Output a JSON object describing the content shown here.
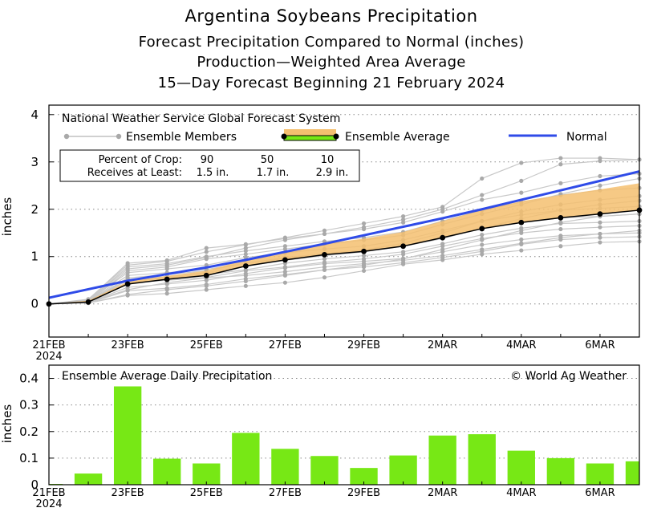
{
  "titles": {
    "main": "Argentina Soybeans Precipitation",
    "sub1": "Forecast Precipitation Compared to Normal (inches)",
    "sub2": "Production—Weighted Area Average",
    "sub3": "15—Day Forecast Beginning 21 February 2024"
  },
  "colors": {
    "member": "#c8c8c8",
    "member_marker": "#a9a9a9",
    "average_band": "#f5c070",
    "average_line": "#000000",
    "normal": "#2f4be8",
    "daily_bar": "#77e815"
  },
  "top_panel": {
    "source_label": "National Weather Service Global Forecast System",
    "legend": {
      "members": "Ensemble Members",
      "average": "Ensemble Average",
      "normal": "Normal"
    },
    "crop_box": {
      "row1_label": "Percent of Crop:",
      "row1_values": [
        "90",
        "50",
        "10"
      ],
      "row2_label": "Receives at Least:",
      "row2_values": [
        "1.5 in.",
        "1.7 in.",
        "2.9 in."
      ]
    }
  },
  "bottom_panel": {
    "title": "Ensemble Average Daily Precipitation",
    "credit": "© World Ag Weather"
  },
  "chart_data": [
    {
      "type": "line",
      "ylabel": "inches",
      "ylim": [
        -0.7,
        4.2
      ],
      "yticks": [
        0,
        1,
        2,
        3,
        4
      ],
      "x_day_range": [
        0,
        15
      ],
      "xtick_days": [
        0,
        2,
        4,
        6,
        8,
        10,
        12,
        14
      ],
      "xtick_labels": [
        "21FEB",
        "23FEB",
        "25FEB",
        "27FEB",
        "29FEB",
        "2MAR",
        "4MAR",
        "6MAR"
      ],
      "year_label": "2024",
      "grid": "dotted horizontal",
      "days": [
        0,
        1,
        2,
        3,
        4,
        5,
        6,
        7,
        8,
        9,
        10,
        11,
        12,
        13,
        14,
        15
      ],
      "series": [
        {
          "name": "Ensemble Average",
          "values": [
            0,
            0.04,
            0.42,
            0.52,
            0.6,
            0.8,
            0.93,
            1.04,
            1.11,
            1.22,
            1.4,
            1.59,
            1.72,
            1.82,
            1.9,
            1.98
          ]
        },
        {
          "name": "Normal",
          "values": [
            0.13,
            0.31,
            0.49,
            0.63,
            0.77,
            0.93,
            1.1,
            1.27,
            1.45,
            1.63,
            1.81,
            2.0,
            2.2,
            2.4,
            2.6,
            2.8
          ]
        },
        {
          "name": "Ensemble Spread Upper",
          "values": [
            0,
            0.07,
            0.47,
            0.59,
            0.7,
            0.94,
            1.1,
            1.27,
            1.38,
            1.52,
            1.75,
            1.98,
            2.17,
            2.3,
            2.42,
            2.55
          ]
        }
      ],
      "members": [
        [
          0,
          0.02,
          0.18,
          0.22,
          0.3,
          0.38,
          0.45,
          0.56,
          0.7,
          0.84,
          0.93,
          1.05,
          1.13,
          1.22,
          1.3,
          1.32
        ],
        [
          0,
          0.02,
          0.28,
          0.33,
          0.41,
          0.53,
          0.62,
          0.72,
          0.78,
          0.87,
          0.98,
          1.11,
          1.26,
          1.36,
          1.4,
          1.42
        ],
        [
          0,
          0.03,
          0.35,
          0.42,
          0.5,
          0.64,
          0.76,
          0.85,
          0.9,
          0.96,
          1.1,
          1.25,
          1.36,
          1.44,
          1.48,
          1.5
        ],
        [
          0,
          0.05,
          0.45,
          0.5,
          0.56,
          0.7,
          0.78,
          0.88,
          0.95,
          1.05,
          1.22,
          1.38,
          1.5,
          1.58,
          1.62,
          1.65
        ],
        [
          0,
          0.04,
          0.5,
          0.55,
          0.62,
          0.72,
          0.86,
          0.95,
          1.02,
          1.1,
          1.27,
          1.46,
          1.6,
          1.7,
          1.72,
          1.75
        ],
        [
          0,
          0.06,
          0.6,
          0.66,
          0.73,
          0.86,
          0.98,
          1.06,
          1.12,
          1.22,
          1.4,
          1.6,
          1.72,
          1.82,
          1.85,
          1.9
        ],
        [
          0,
          0.07,
          0.66,
          0.74,
          0.82,
          0.98,
          1.08,
          1.16,
          1.22,
          1.35,
          1.55,
          1.75,
          1.88,
          1.98,
          2.02,
          2.06
        ],
        [
          0,
          0.05,
          0.55,
          0.62,
          0.7,
          0.86,
          0.96,
          1.06,
          1.14,
          1.28,
          1.5,
          1.75,
          1.95,
          2.1,
          2.2,
          2.28
        ],
        [
          0,
          0.08,
          0.78,
          0.85,
          1.0,
          1.12,
          1.22,
          1.32,
          1.4,
          1.52,
          1.75,
          1.98,
          2.15,
          2.3,
          2.4,
          2.45
        ],
        [
          0,
          0.09,
          0.86,
          0.92,
          1.18,
          1.26,
          1.38,
          1.48,
          1.58,
          1.72,
          1.95,
          2.2,
          2.35,
          2.55,
          2.7,
          2.75
        ],
        [
          0,
          0.06,
          0.7,
          0.78,
          0.95,
          1.05,
          1.16,
          1.26,
          1.35,
          1.45,
          1.68,
          1.9,
          2.1,
          2.32,
          2.5,
          2.65
        ],
        [
          0,
          0.04,
          0.52,
          0.58,
          0.66,
          0.8,
          0.92,
          1.02,
          1.1,
          1.22,
          1.38,
          1.6,
          1.8,
          1.98,
          2.1,
          2.18
        ],
        [
          0,
          0.1,
          0.82,
          0.9,
          1.1,
          1.25,
          1.4,
          1.55,
          1.7,
          1.85,
          2.05,
          2.65,
          2.98,
          3.08,
          3.08,
          3.05
        ],
        [
          0,
          0.08,
          0.74,
          0.82,
          0.98,
          1.18,
          1.35,
          1.48,
          1.62,
          1.78,
          2.0,
          2.3,
          2.6,
          2.95,
          3.02,
          3.05
        ],
        [
          0,
          0.03,
          0.3,
          0.45,
          0.55,
          0.6,
          0.68,
          0.78,
          0.85,
          0.92,
          1.02,
          1.15,
          1.28,
          1.4,
          1.48,
          1.55
        ],
        [
          0,
          0.02,
          0.2,
          0.3,
          0.38,
          0.48,
          0.6,
          0.72,
          0.82,
          0.95,
          1.15,
          1.35,
          1.55,
          1.72,
          1.85,
          1.9
        ]
      ]
    },
    {
      "type": "bar",
      "title": "Ensemble Average Daily Precipitation",
      "ylabel": "inches",
      "ylim": [
        0,
        0.45
      ],
      "yticks": [
        "0",
        "0.1",
        "0.2",
        "0.3",
        "0.4"
      ],
      "x_day_range": [
        0,
        15
      ],
      "xtick_days": [
        0,
        2,
        4,
        6,
        8,
        10,
        12,
        14
      ],
      "xtick_labels": [
        "21FEB",
        "23FEB",
        "25FEB",
        "27FEB",
        "29FEB",
        "2MAR",
        "4MAR",
        "6MAR"
      ],
      "year_label": "2024",
      "categories": [
        "21FEB",
        "22FEB",
        "23FEB",
        "24FEB",
        "25FEB",
        "26FEB",
        "27FEB",
        "28FEB",
        "29FEB",
        "1MAR",
        "2MAR",
        "3MAR",
        "4MAR",
        "5MAR",
        "6MAR",
        "7MAR"
      ],
      "values": [
        0.003,
        0.042,
        0.37,
        0.098,
        0.08,
        0.195,
        0.135,
        0.108,
        0.063,
        0.11,
        0.185,
        0.19,
        0.128,
        0.1,
        0.08,
        0.088
      ]
    }
  ]
}
